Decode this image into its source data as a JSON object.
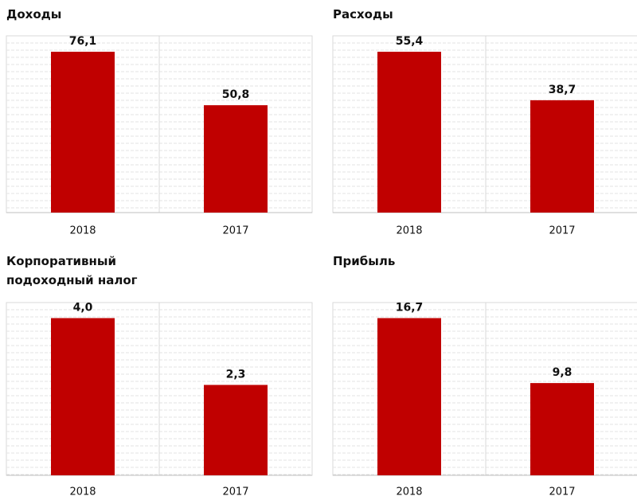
{
  "chart_data": [
    {
      "type": "bar",
      "title": "Доходы",
      "categories": [
        "2018",
        "2017"
      ],
      "values": [
        76.1,
        50.8
      ],
      "value_labels": [
        "76,1",
        "50,8"
      ],
      "color": "#c00000"
    },
    {
      "type": "bar",
      "title": "Расходы",
      "categories": [
        "2018",
        "2017"
      ],
      "values": [
        55.4,
        38.7
      ],
      "value_labels": [
        "55,4",
        "38,7"
      ],
      "color": "#c00000"
    },
    {
      "type": "bar",
      "title": "Корпоративный подоходный налог",
      "categories": [
        "2018",
        "2017"
      ],
      "values": [
        4.0,
        2.3
      ],
      "value_labels": [
        "4,0",
        "2,3"
      ],
      "color": "#c00000"
    },
    {
      "type": "bar",
      "title": "Прибыль",
      "categories": [
        "2018",
        "2017"
      ],
      "values": [
        16.7,
        9.8
      ],
      "value_labels": [
        "16,7",
        "9,8"
      ],
      "color": "#c00000"
    }
  ]
}
